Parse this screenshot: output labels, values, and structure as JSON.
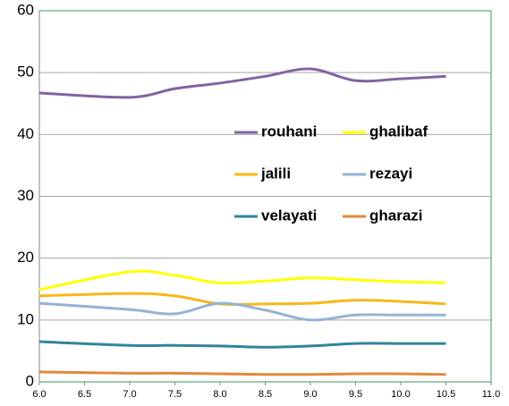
{
  "chart_data": {
    "type": "line",
    "x": [
      6,
      7,
      7.5,
      8,
      8.5,
      9,
      9.5,
      10,
      10.5
    ],
    "series": [
      {
        "name": "rouhani",
        "color": "#8064a2",
        "values": [
          46.7,
          46.0,
          47.4,
          48.3,
          49.4,
          50.6,
          48.7,
          49.0,
          49.4
        ]
      },
      {
        "name": "ghalibaf",
        "color": "#ffff00",
        "values": [
          14.9,
          17.8,
          17.2,
          16.0,
          16.3,
          16.8,
          16.5,
          16.2,
          16.0
        ]
      },
      {
        "name": "jalili",
        "color": "#f6b81b",
        "values": [
          13.9,
          14.3,
          13.9,
          12.6,
          12.6,
          12.7,
          13.2,
          13.0,
          12.6
        ]
      },
      {
        "name": "rezayi",
        "color": "#95b3d7",
        "values": [
          12.7,
          11.7,
          11.0,
          12.7,
          11.6,
          10.0,
          10.8,
          10.8,
          10.8
        ]
      },
      {
        "name": "velayati",
        "color": "#31859c",
        "values": [
          6.5,
          5.9,
          5.9,
          5.8,
          5.6,
          5.8,
          6.2,
          6.2,
          6.2
        ]
      },
      {
        "name": "gharazi",
        "color": "#e08a3c",
        "values": [
          1.6,
          1.4,
          1.4,
          1.3,
          1.2,
          1.2,
          1.3,
          1.3,
          1.2
        ]
      }
    ],
    "xlim": [
      6,
      11
    ],
    "xticks": [
      {
        "value": 6,
        "label": "6.0"
      },
      {
        "value": 6.5,
        "label": "6.5"
      },
      {
        "value": 7,
        "label": "7.0"
      },
      {
        "value": 7.5,
        "label": "7.5"
      },
      {
        "value": 8,
        "label": "8.0"
      },
      {
        "value": 8.5,
        "label": "8.5"
      },
      {
        "value": 9,
        "label": "9.0"
      },
      {
        "value": 9.5,
        "label": "9.5"
      },
      {
        "value": 10,
        "label": "10.0"
      },
      {
        "value": 10.5,
        "label": "10.5"
      },
      {
        "value": 11,
        "label": "11.0"
      }
    ],
    "ylim": [
      0,
      60
    ],
    "yticks": [
      0,
      10,
      20,
      30,
      40,
      50,
      60
    ],
    "grid": true,
    "legend": "inside"
  }
}
